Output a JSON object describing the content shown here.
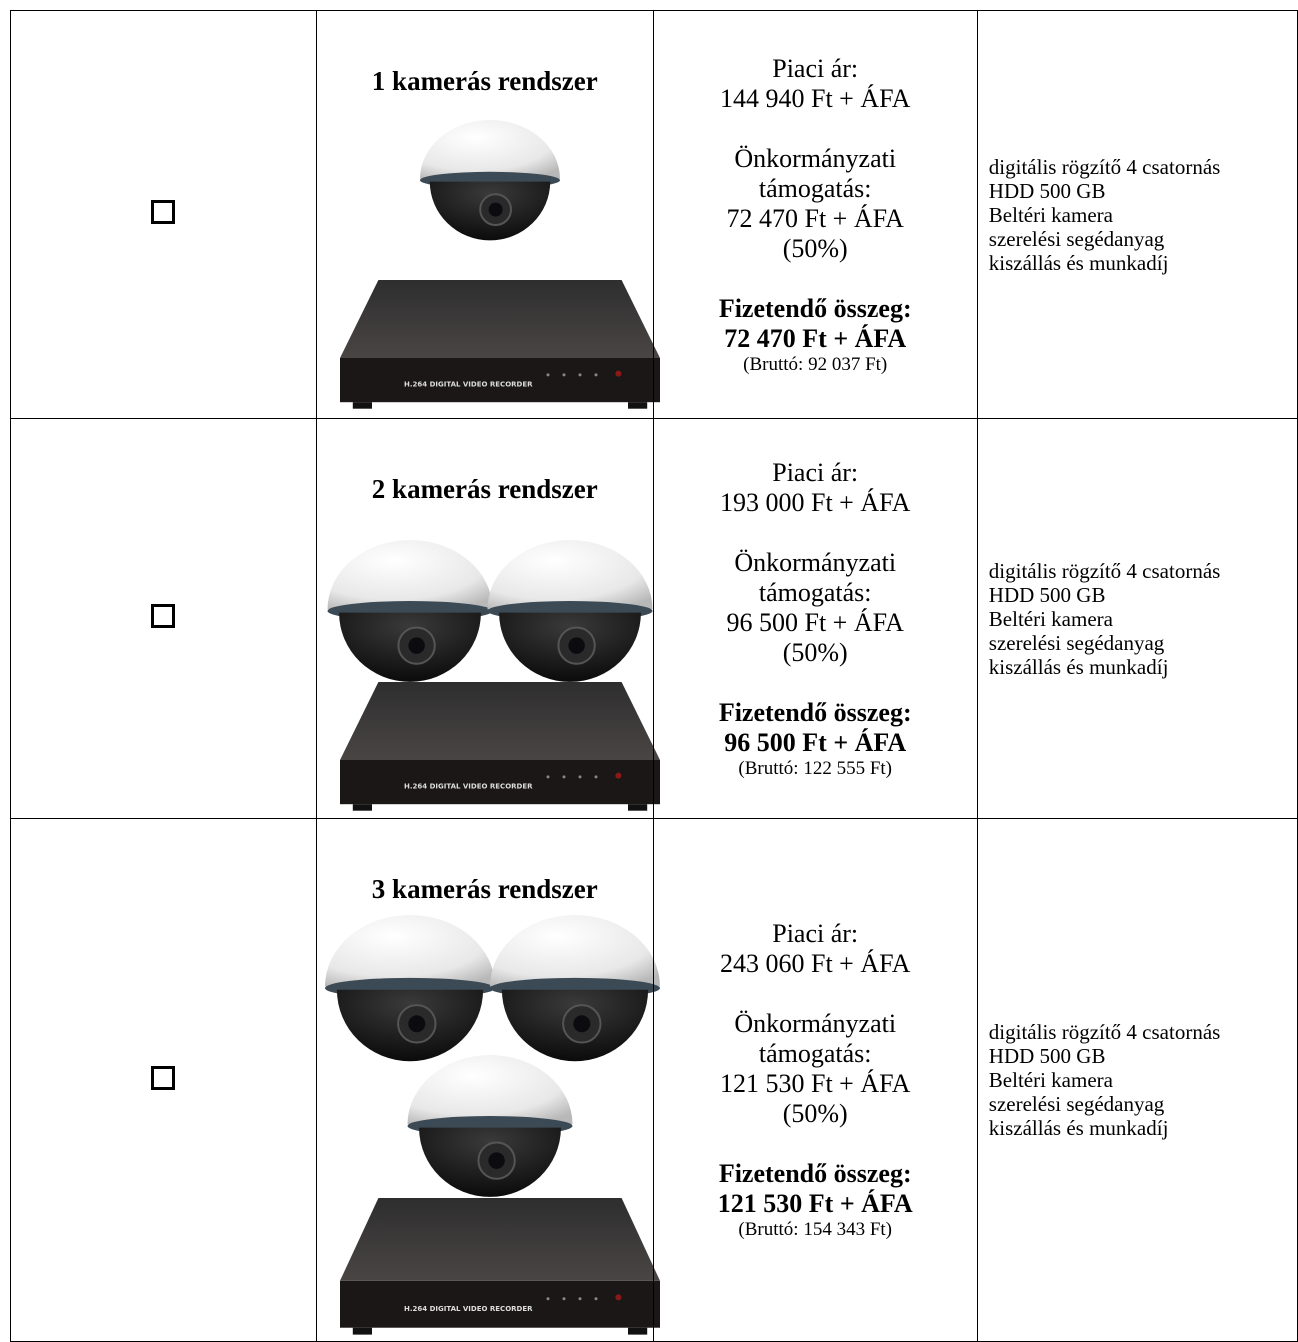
{
  "dvr_label": "H.264 DIGITAL VIDEO RECORDER",
  "rows": [
    {
      "title": "1 kamerás rendszer",
      "market_label": "Piaci ár:",
      "market_price": "144 940 Ft + ÁFA",
      "subsidy_label": "Önkormányzati támogatás:",
      "subsidy_amount": "72 470 Ft + ÁFA",
      "subsidy_percent": "(50%)",
      "payable_label": "Fizetendő összeg:",
      "payable_amount": "72 470 Ft + ÁFA",
      "gross": "(Bruttó: 92 037 Ft)",
      "features": [
        "digitális rögzítő 4 csatornás",
        "HDD 500 GB",
        "Beltéri kamera",
        "szerelési segédanyag",
        "kiszállás és munkadíj"
      ]
    },
    {
      "title": "2 kamerás rendszer",
      "market_label": "Piaci ár:",
      "market_price": "193 000 Ft + ÁFA",
      "subsidy_label": "Önkormányzati támogatás:",
      "subsidy_amount": "96 500 Ft + ÁFA",
      "subsidy_percent": "(50%)",
      "payable_label": "Fizetendő összeg:",
      "payable_amount": "96 500 Ft + ÁFA",
      "gross": "(Bruttó: 122 555 Ft)",
      "features": [
        "digitális rögzítő 4 csatornás",
        "HDD 500 GB",
        "Beltéri kamera",
        "szerelési segédanyag",
        "kiszállás és munkadíj"
      ]
    },
    {
      "title": "3 kamerás rendszer",
      "market_label": "Piaci ár:",
      "market_price": "243 060 Ft + ÁFA",
      "subsidy_label": "Önkormányzati támogatás:",
      "subsidy_amount": "121 530 Ft + ÁFA",
      "subsidy_percent": "(50%)",
      "payable_label": "Fizetendő összeg:",
      "payable_amount": "121 530 Ft + ÁFA",
      "gross": "(Bruttó: 154 343 Ft)",
      "features": [
        "digitális rögzítő 4 csatornás",
        "HDD 500 GB",
        "Beltéri kamera",
        "szerelési segédanyag",
        "kiszállás és munkadíj"
      ]
    }
  ]
}
